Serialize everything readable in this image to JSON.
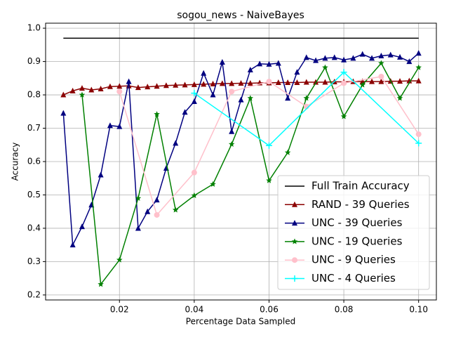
{
  "chart_data": {
    "type": "line",
    "title": "sogou_news - NaiveBayes",
    "xlabel": "Percentage Data Sampled",
    "ylabel": "Accuracy",
    "xlim": [
      0.00025,
      0.10475
    ],
    "ylim": [
      0.185,
      1.015
    ],
    "xticks": [
      0.02,
      0.04,
      0.06,
      0.08,
      {
        "value": 0.1,
        "label": "0.10"
      }
    ],
    "yticks": [
      0.2,
      0.3,
      0.4,
      0.5,
      0.6,
      0.7,
      0.8,
      0.9,
      {
        "value": 1,
        "label": "1.0"
      }
    ],
    "grid": true,
    "legend": "lower right",
    "series": [
      {
        "name": "Full Train Accuracy",
        "color": "#000000",
        "x": [
          0.005,
          0.1
        ],
        "values": [
          0.97,
          0.97
        ]
      },
      {
        "name": "RAND - 39 Queries",
        "color": "#8b0000",
        "marker": "triangle",
        "x": [
          0.005,
          0.0075,
          0.01,
          0.0125,
          0.015,
          0.0175,
          0.02,
          0.0225,
          0.025,
          0.0275,
          0.03,
          0.0325,
          0.035,
          0.0375,
          0.04,
          0.0425,
          0.045,
          0.0475,
          0.05,
          0.0525,
          0.055,
          0.0575,
          0.06,
          0.0625,
          0.065,
          0.0675,
          0.07,
          0.0725,
          0.075,
          0.0775,
          0.08,
          0.0825,
          0.085,
          0.0875,
          0.09,
          0.0925,
          0.095,
          0.0975,
          0.1
        ],
        "values": [
          0.8,
          0.812,
          0.82,
          0.815,
          0.818,
          0.825,
          0.826,
          0.827,
          0.822,
          0.824,
          0.826,
          0.828,
          0.829,
          0.83,
          0.831,
          0.832,
          0.833,
          0.834,
          0.834,
          0.835,
          0.835,
          0.836,
          0.836,
          0.837,
          0.837,
          0.837,
          0.838,
          0.838,
          0.838,
          0.839,
          0.839,
          0.84,
          0.84,
          0.84,
          0.84,
          0.841,
          0.841,
          0.842,
          0.842
        ]
      },
      {
        "name": "UNC - 39 Queries",
        "color": "#000080",
        "marker": "triangle",
        "x": [
          0.005,
          0.0075,
          0.01,
          0.0125,
          0.015,
          0.0175,
          0.02,
          0.0225,
          0.025,
          0.0275,
          0.03,
          0.0325,
          0.035,
          0.0375,
          0.04,
          0.0425,
          0.045,
          0.0475,
          0.05,
          0.0525,
          0.055,
          0.0575,
          0.06,
          0.0625,
          0.065,
          0.0675,
          0.07,
          0.0725,
          0.075,
          0.0775,
          0.08,
          0.0825,
          0.085,
          0.0875,
          0.09,
          0.0925,
          0.095,
          0.0975,
          0.1
        ],
        "values": [
          0.745,
          0.35,
          0.405,
          0.47,
          0.56,
          0.708,
          0.705,
          0.84,
          0.4,
          0.45,
          0.485,
          0.58,
          0.655,
          0.748,
          0.78,
          0.865,
          0.8,
          0.898,
          0.69,
          0.785,
          0.875,
          0.893,
          0.892,
          0.895,
          0.79,
          0.868,
          0.912,
          0.903,
          0.91,
          0.912,
          0.905,
          0.91,
          0.922,
          0.91,
          0.917,
          0.92,
          0.913,
          0.9,
          0.925
        ]
      },
      {
        "name": "UNC - 19 Queries",
        "color": "#008000",
        "marker": "star",
        "x": [
          0.01,
          0.015,
          0.02,
          0.025,
          0.03,
          0.035,
          0.04,
          0.045,
          0.05,
          0.055,
          0.06,
          0.065,
          0.07,
          0.075,
          0.08,
          0.085,
          0.09,
          0.095,
          0.1
        ],
        "values": [
          0.8,
          0.232,
          0.305,
          0.49,
          0.742,
          0.455,
          0.498,
          0.532,
          0.652,
          0.79,
          0.543,
          0.627,
          0.79,
          0.882,
          0.735,
          0.83,
          0.895,
          0.79,
          0.882
        ]
      },
      {
        "name": "UNC - 9 Queries",
        "color": "#ffc0cb",
        "marker": "circle",
        "x": [
          0.02,
          0.03,
          0.04,
          0.05,
          0.06,
          0.07,
          0.08,
          0.09,
          0.1
        ],
        "values": [
          0.81,
          0.44,
          0.567,
          0.81,
          0.84,
          0.765,
          0.835,
          0.855,
          0.682
        ]
      },
      {
        "name": "UNC - 4 Queries",
        "color": "#00ffff",
        "marker": "plus",
        "x": [
          0.04,
          0.06,
          0.08,
          0.1
        ],
        "values": [
          0.805,
          0.648,
          0.868,
          0.655
        ]
      }
    ]
  }
}
